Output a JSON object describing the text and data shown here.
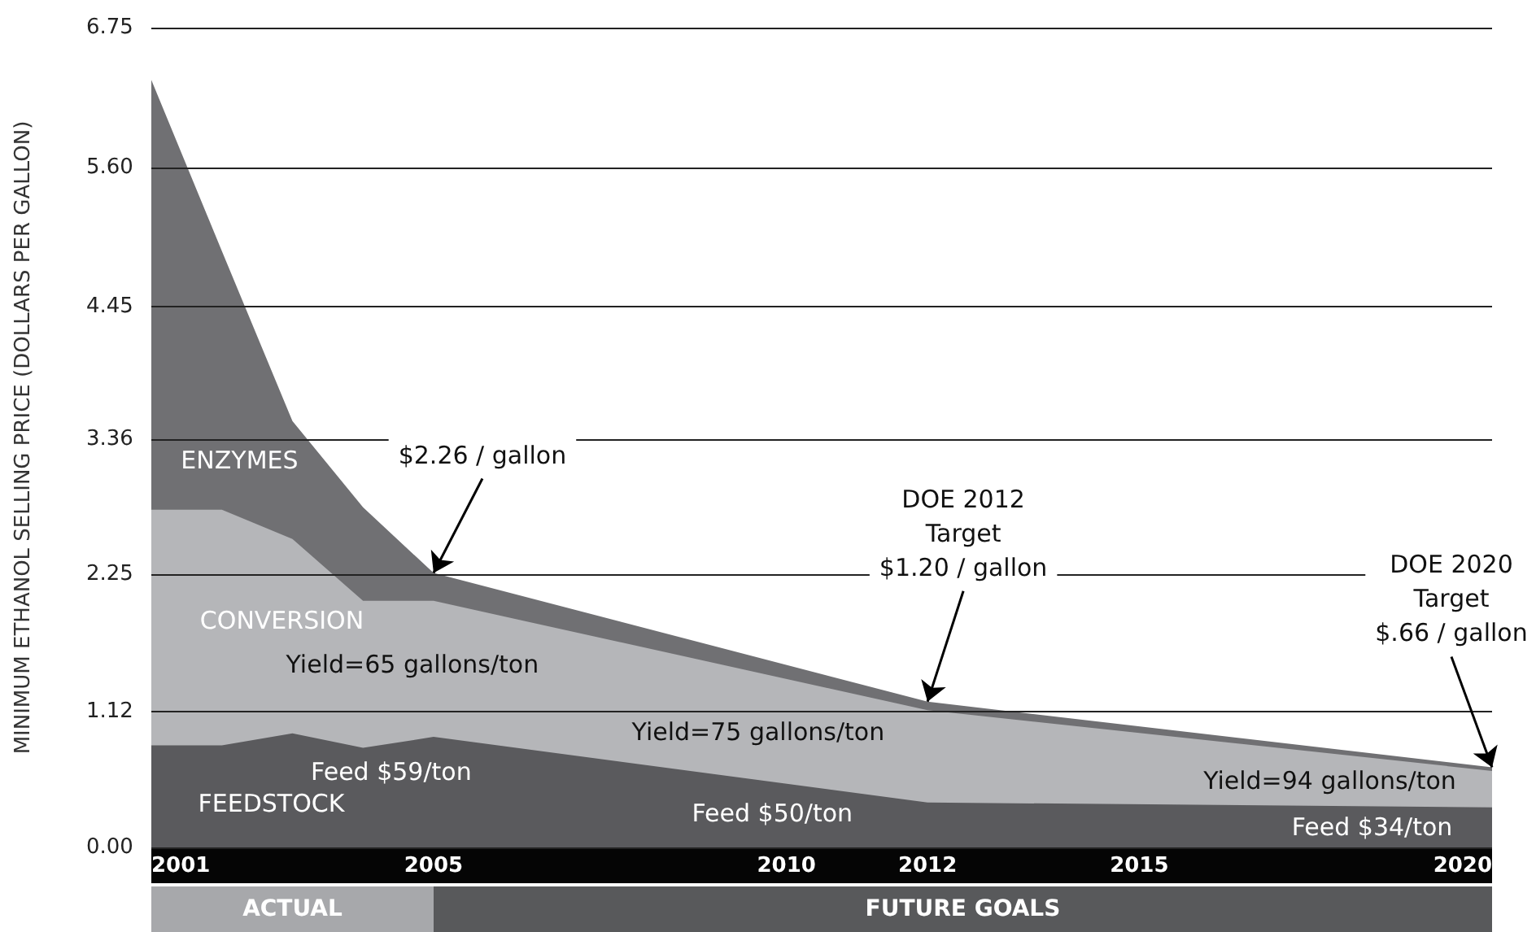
{
  "chart_data": {
    "type": "area",
    "stacked": true,
    "ylabel": "MINIMUM ETHANOL SELLING PRICE (DOLLARS PER GALLON)",
    "x": [
      2001,
      2002,
      2003,
      2004,
      2005,
      2012,
      2020
    ],
    "series": [
      {
        "name": "FEEDSTOCK",
        "color": "#5a5a5d",
        "values": [
          0.84,
          0.84,
          0.94,
          0.82,
          0.91,
          0.37,
          0.33
        ]
      },
      {
        "name": "CONVERSION",
        "color": "#b5b6b9",
        "values": [
          1.94,
          1.94,
          1.6,
          1.21,
          1.12,
          0.76,
          0.3
        ]
      },
      {
        "name": "ENZYMES",
        "color": "#707073",
        "values": [
          3.54,
          2.13,
          0.97,
          0.77,
          0.23,
          0.07,
          0.03
        ]
      }
    ],
    "xlim": [
      2001,
      2020
    ],
    "xticks": [
      2001,
      2005,
      2010,
      2012,
      2015,
      2020
    ],
    "ylim": [
      0,
      6.75
    ],
    "yticks": [
      {
        "value": 0,
        "label": "0.00"
      },
      1.12,
      2.25,
      3.36,
      4.45,
      {
        "value": 5.6,
        "label": "5.60"
      },
      6.75
    ],
    "grid": "y",
    "annotations": [
      "Yield=65 gallons/ton",
      "Yield=75 gallons/ton",
      "Yield=94 gallons/ton",
      "Feed $59/ton",
      "Feed $50/ton",
      "Feed $34/ton",
      {
        "text": "$2.26 / gallon",
        "x": 2005,
        "y": 2.26
      },
      {
        "text": "DOE 2012\nTarget\n$1.20 / gallon",
        "x": 2012,
        "y": 1.2
      },
      {
        "text": "DOE 2020\nTarget\n$.66 / gallon",
        "x": 2020,
        "y": 0.66
      },
      "ACTUAL",
      "FUTURE GOALS"
    ]
  }
}
